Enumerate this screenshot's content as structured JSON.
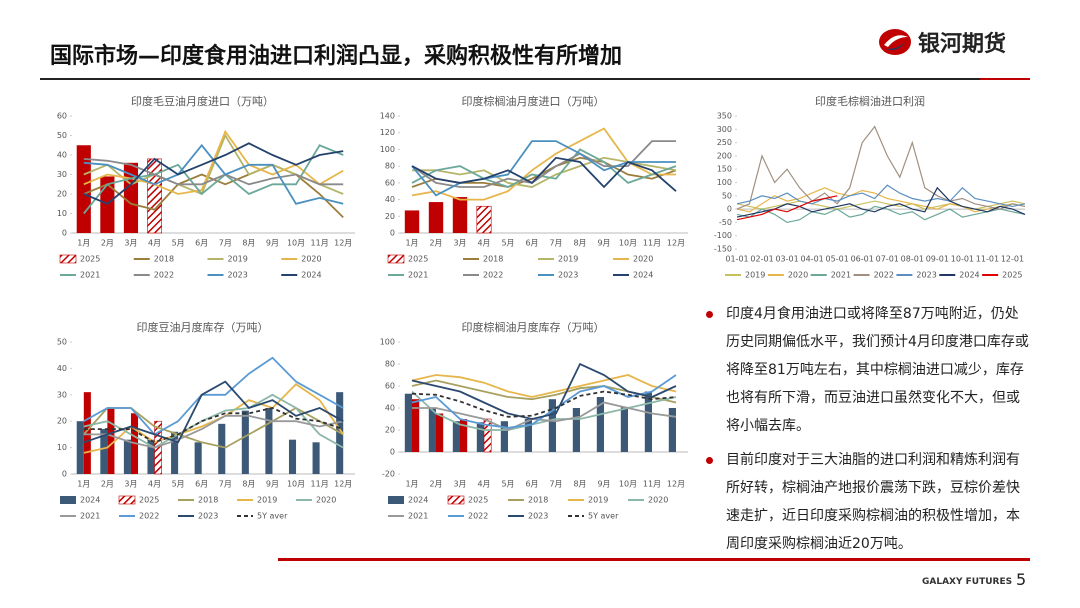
{
  "header": {
    "title": "国际市场—印度食用油进口利润凸显，采购积极性有所增加",
    "logo": "银河期货"
  },
  "bullets": [
    "印度4月食用油进口或将降至87万吨附近，仍处历史同期偏低水平，我们预计4月印度港口库存或将降至81万吨左右，其中棕榈油进口减少，库存也将有所下滑，而豆油进口虽然变化不大，但或将小幅去库。",
    "目前印度对于三大油脂的进口利润和精炼利润有所好转，棕榈油产地报价震荡下跌，豆棕价差快速走扩，近日印度采购棕榈油的积极性增加，本周印度采购棕榈油近20万吨。"
  ],
  "footer": {
    "brand": "GALAXY FUTURES",
    "page": "5"
  },
  "chart_data": [
    {
      "type": "bar",
      "title": "印度毛豆油月度进口（万吨）",
      "categories": [
        "1月",
        "2月",
        "3月",
        "4月",
        "5月",
        "6月",
        "7月",
        "8月",
        "9月",
        "10月",
        "11月",
        "12月"
      ],
      "ylim": [
        0,
        60
      ],
      "yticks": [
        0,
        10,
        20,
        30,
        40,
        50,
        60
      ],
      "series": [
        {
          "name": "2025",
          "kind": "bar",
          "hatch_last": true,
          "color": "#c00000",
          "values": [
            45,
            29,
            36,
            38,
            null,
            null,
            null,
            null,
            null,
            null,
            null,
            null
          ]
        },
        {
          "name": "2018",
          "kind": "line",
          "color": "#9c7e3c",
          "values": [
            20,
            25,
            15,
            12,
            25,
            30,
            25,
            30,
            35,
            30,
            20,
            8
          ]
        },
        {
          "name": "2019",
          "kind": "line",
          "color": "#b5b56a",
          "values": [
            30,
            35,
            25,
            30,
            25,
            20,
            50,
            30,
            35,
            30,
            25,
            20
          ]
        },
        {
          "name": "2020",
          "kind": "line",
          "color": "#e6b64a",
          "values": [
            25,
            30,
            28,
            25,
            20,
            22,
            52,
            35,
            30,
            35,
            25,
            32
          ]
        },
        {
          "name": "2021",
          "kind": "line",
          "color": "#6aa89a",
          "values": [
            10,
            25,
            28,
            30,
            35,
            20,
            30,
            20,
            25,
            25,
            45,
            40
          ]
        },
        {
          "name": "2022",
          "kind": "line",
          "color": "#8a8a8a",
          "values": [
            38,
            37,
            35,
            30,
            25,
            25,
            30,
            25,
            28,
            30,
            25,
            25
          ]
        },
        {
          "name": "2023",
          "kind": "line",
          "color": "#4a90c0",
          "values": [
            36,
            35,
            30,
            25,
            30,
            45,
            30,
            35,
            35,
            15,
            18,
            15
          ]
        },
        {
          "name": "2024",
          "kind": "line",
          "color": "#24426e",
          "values": [
            20,
            15,
            25,
            38,
            30,
            35,
            40,
            46,
            40,
            35,
            40,
            42
          ]
        }
      ]
    },
    {
      "type": "bar",
      "title": "印度棕榈油月度进口（万吨）",
      "categories": [
        "1月",
        "2月",
        "3月",
        "4月",
        "5月",
        "6月",
        "7月",
        "8月",
        "9月",
        "10月",
        "11月",
        "12月"
      ],
      "ylim": [
        0,
        140
      ],
      "yticks": [
        0,
        20,
        40,
        60,
        80,
        100,
        120,
        140
      ],
      "series": [
        {
          "name": "2025",
          "kind": "bar",
          "hatch_last": true,
          "color": "#c00000",
          "values": [
            27,
            37,
            43,
            32,
            null,
            null,
            null,
            null,
            null,
            null,
            null,
            null
          ]
        },
        {
          "name": "2018",
          "kind": "line",
          "color": "#9c7e3c",
          "values": [
            55,
            65,
            60,
            60,
            55,
            65,
            80,
            90,
            85,
            70,
            65,
            75
          ]
        },
        {
          "name": "2019",
          "kind": "line",
          "color": "#b5b56a",
          "values": [
            75,
            75,
            70,
            75,
            60,
            55,
            70,
            80,
            90,
            85,
            80,
            75
          ]
        },
        {
          "name": "2020",
          "kind": "line",
          "color": "#e6b64a",
          "values": [
            45,
            50,
            40,
            40,
            50,
            75,
            95,
            110,
            125,
            85,
            70,
            70
          ]
        },
        {
          "name": "2021",
          "kind": "line",
          "color": "#6aa89a",
          "values": [
            60,
            75,
            80,
            65,
            55,
            70,
            65,
            100,
            85,
            60,
            70,
            80
          ]
        },
        {
          "name": "2022",
          "kind": "line",
          "color": "#8a8a8a",
          "values": [
            80,
            60,
            55,
            55,
            65,
            60,
            80,
            95,
            80,
            80,
            110,
            110
          ]
        },
        {
          "name": "2023",
          "kind": "line",
          "color": "#4a90c0",
          "values": [
            80,
            45,
            60,
            65,
            70,
            110,
            110,
            95,
            75,
            85,
            85,
            85
          ]
        },
        {
          "name": "2024",
          "kind": "line",
          "color": "#24426e",
          "values": [
            80,
            65,
            60,
            65,
            75,
            60,
            90,
            85,
            55,
            85,
            75,
            50
          ]
        }
      ]
    },
    {
      "type": "line",
      "title": "印度毛棕榈油进口利润",
      "categories": [
        "01-01",
        null,
        "02-01",
        null,
        "03-01",
        null,
        "04-01",
        null,
        "05-01",
        null,
        "06-01",
        null,
        "07-01",
        null,
        "08-01",
        null,
        "09-01",
        null,
        "10-01",
        null,
        "11-01",
        null,
        "12-01",
        null
      ],
      "ylim": [
        -150,
        350
      ],
      "yticks": [
        -150,
        -100,
        -50,
        0,
        50,
        100,
        150,
        200,
        250,
        300,
        350
      ],
      "series": [
        {
          "name": "2019",
          "kind": "line",
          "color": "#c8c060",
          "values": [
            20,
            10,
            0,
            10,
            20,
            30,
            20,
            10,
            0,
            10,
            20,
            30,
            20,
            10,
            20,
            0,
            10,
            20,
            10,
            0,
            10,
            20,
            30,
            20
          ]
        },
        {
          "name": "2020",
          "kind": "line",
          "color": "#e6b64a",
          "values": [
            0,
            -10,
            20,
            50,
            30,
            40,
            60,
            80,
            60,
            50,
            70,
            60,
            40,
            30,
            20,
            10,
            0,
            20,
            10,
            -10,
            0,
            10,
            20,
            10
          ]
        },
        {
          "name": "2021",
          "kind": "line",
          "color": "#6aa89a",
          "values": [
            -20,
            -30,
            0,
            -20,
            -50,
            -40,
            -10,
            -20,
            0,
            -30,
            -20,
            10,
            0,
            -20,
            -10,
            -40,
            -20,
            0,
            -30,
            -20,
            -10,
            0,
            -10,
            -20
          ]
        },
        {
          "name": "2022",
          "kind": "line",
          "color": "#a09080",
          "values": [
            0,
            20,
            200,
            100,
            150,
            80,
            30,
            60,
            20,
            80,
            250,
            310,
            200,
            120,
            250,
            80,
            50,
            30,
            40,
            20,
            10,
            0,
            20,
            10
          ]
        },
        {
          "name": "2023",
          "kind": "line",
          "color": "#5b8fc0",
          "values": [
            20,
            30,
            50,
            40,
            60,
            30,
            20,
            40,
            30,
            50,
            60,
            40,
            90,
            60,
            40,
            30,
            40,
            30,
            80,
            40,
            30,
            20,
            10,
            20
          ]
        },
        {
          "name": "2024",
          "kind": "line",
          "color": "#1f3864",
          "values": [
            -30,
            -20,
            -10,
            0,
            20,
            10,
            -10,
            0,
            10,
            20,
            0,
            -10,
            10,
            20,
            0,
            -10,
            80,
            30,
            10,
            0,
            -10,
            10,
            0,
            -20
          ]
        },
        {
          "name": "2025",
          "kind": "line",
          "color": "#e00000",
          "values": [
            -40,
            -30,
            -20,
            0,
            -10,
            10,
            30,
            40,
            50,
            null,
            null,
            null,
            null,
            null,
            null,
            null,
            null,
            null,
            null,
            null,
            null,
            null,
            null,
            null
          ]
        }
      ]
    },
    {
      "type": "bar",
      "title": "印度豆油月度库存（万吨）",
      "categories": [
        "1月",
        "2月",
        "3月",
        "4月",
        "5月",
        "6月",
        "7月",
        "8月",
        "9月",
        "10月",
        "11月",
        "12月"
      ],
      "ylim": [
        0,
        50
      ],
      "yticks": [
        0,
        10,
        20,
        30,
        40,
        50
      ],
      "series": [
        {
          "name": "2024",
          "kind": "bar",
          "color": "#3c5a78",
          "values": [
            20,
            17,
            13,
            13,
            16,
            12,
            19,
            24,
            25,
            13,
            12,
            31
          ]
        },
        {
          "name": "2025",
          "kind": "bar",
          "hatch_last": true,
          "color": "#c00000",
          "values": [
            31,
            25,
            23,
            20,
            null,
            null,
            null,
            null,
            null,
            null,
            null,
            null
          ]
        },
        {
          "name": "2018",
          "kind": "line",
          "color": "#a8a060",
          "values": [
            15,
            25,
            25,
            18,
            15,
            12,
            10,
            15,
            20,
            25,
            20,
            15
          ]
        },
        {
          "name": "2019",
          "kind": "line",
          "color": "#e6b64a",
          "values": [
            8,
            10,
            18,
            12,
            15,
            18,
            22,
            28,
            25,
            34,
            28,
            15
          ]
        },
        {
          "name": "2020",
          "kind": "line",
          "color": "#8cb8a8",
          "values": [
            18,
            20,
            15,
            10,
            15,
            20,
            24,
            25,
            30,
            25,
            15,
            10
          ]
        },
        {
          "name": "2021",
          "kind": "line",
          "color": "#999999",
          "values": [
            15,
            15,
            12,
            10,
            13,
            17,
            22,
            22,
            20,
            20,
            18,
            20
          ]
        },
        {
          "name": "2022",
          "kind": "line",
          "color": "#5b9bd5",
          "values": [
            20,
            25,
            25,
            15,
            20,
            30,
            30,
            38,
            44,
            35,
            30,
            25
          ]
        },
        {
          "name": "2023",
          "kind": "line",
          "color": "#2c4a70",
          "values": [
            12,
            15,
            18,
            15,
            12,
            30,
            35,
            25,
            28,
            22,
            25,
            20
          ]
        },
        {
          "name": "5Y aver",
          "kind": "line",
          "dash": true,
          "color": "#333333",
          "values": [
            17,
            17,
            17,
            12,
            15,
            20,
            23,
            23,
            25,
            21,
            20,
            17
          ]
        }
      ]
    },
    {
      "type": "bar",
      "title": "印度棕榈油月度库存（万吨）",
      "categories": [
        "1月",
        "2月",
        "3月",
        "4月",
        "5月",
        "6月",
        "7月",
        "8月",
        "9月",
        "10月",
        "11月",
        "12月"
      ],
      "ylim": [
        -20,
        100
      ],
      "yticks": [
        -20,
        0,
        20,
        40,
        60,
        80,
        100
      ],
      "series": [
        {
          "name": "2024",
          "kind": "bar",
          "color": "#3c5a78",
          "values": [
            53,
            40,
            28,
            27,
            28,
            30,
            48,
            40,
            50,
            41,
            55,
            40
          ]
        },
        {
          "name": "2025",
          "kind": "bar",
          "hatch_last": true,
          "color": "#c00000",
          "values": [
            48,
            35,
            30,
            30,
            null,
            null,
            null,
            null,
            null,
            null,
            null,
            null
          ]
        },
        {
          "name": "2018",
          "kind": "line",
          "color": "#a8a060",
          "values": [
            60,
            65,
            60,
            55,
            50,
            48,
            52,
            58,
            60,
            55,
            50,
            45
          ]
        },
        {
          "name": "2019",
          "kind": "line",
          "color": "#e6b64a",
          "values": [
            65,
            70,
            68,
            63,
            55,
            50,
            55,
            60,
            65,
            70,
            60,
            55
          ]
        },
        {
          "name": "2020",
          "kind": "line",
          "color": "#8cb8a8",
          "values": [
            55,
            35,
            25,
            20,
            20,
            25,
            30,
            30,
            35,
            40,
            45,
            50
          ]
        },
        {
          "name": "2021",
          "kind": "line",
          "color": "#999999",
          "values": [
            40,
            40,
            35,
            30,
            20,
            30,
            28,
            32,
            45,
            40,
            35,
            32
          ]
        },
        {
          "name": "2022",
          "kind": "line",
          "color": "#5b9bd5",
          "values": [
            45,
            50,
            30,
            25,
            22,
            25,
            40,
            55,
            60,
            50,
            55,
            70
          ]
        },
        {
          "name": "2023",
          "kind": "line",
          "color": "#2c4a70",
          "values": [
            65,
            60,
            55,
            45,
            35,
            30,
            35,
            80,
            70,
            55,
            50,
            60
          ]
        },
        {
          "name": "5Y aver",
          "kind": "line",
          "dash": true,
          "color": "#333333",
          "values": [
            53,
            52,
            46,
            38,
            32,
            33,
            40,
            51,
            55,
            52,
            48,
            50
          ]
        }
      ]
    }
  ]
}
